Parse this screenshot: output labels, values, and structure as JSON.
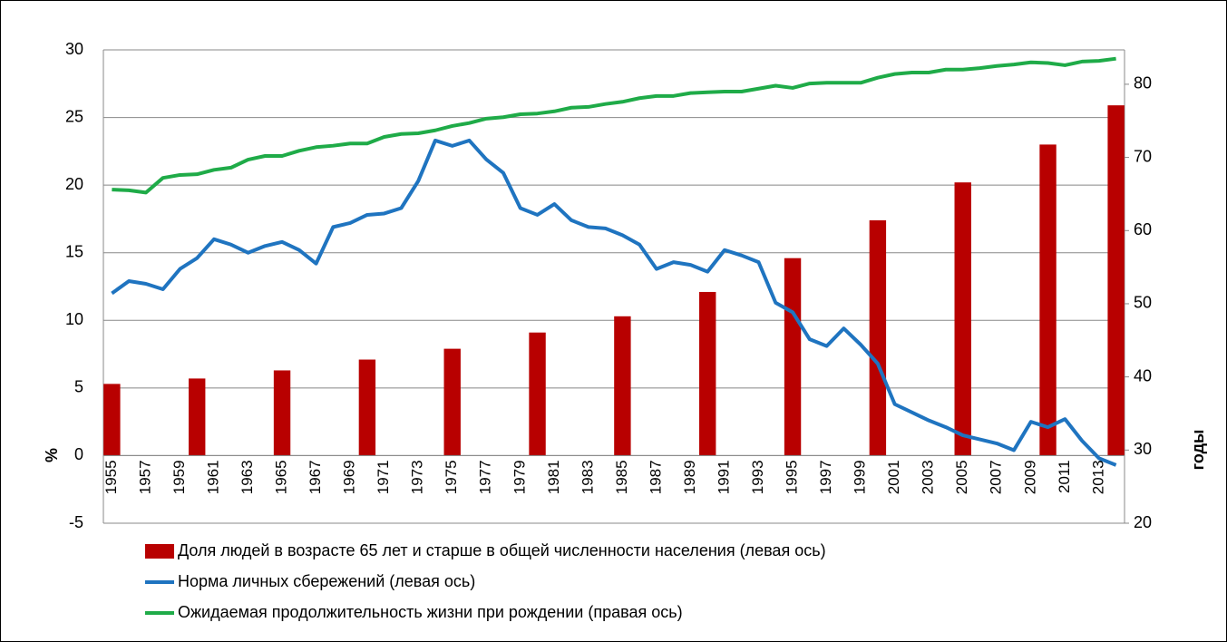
{
  "chart_data": {
    "type": "bar_line",
    "ylabel": "%",
    "y2label": "годы",
    "categories": [
      "1955",
      null,
      "1957",
      null,
      "1959",
      null,
      "1961",
      null,
      "1963",
      null,
      "1965",
      null,
      "1967",
      null,
      "1969",
      null,
      "1971",
      null,
      "1973",
      null,
      "1975",
      null,
      "1977",
      null,
      "1979",
      null,
      "1981",
      null,
      "1983",
      null,
      "1985",
      null,
      "1987",
      null,
      "1989",
      null,
      "1991",
      null,
      "1993",
      null,
      "1995",
      null,
      "1997",
      null,
      "1999",
      null,
      "2001",
      null,
      "2003",
      null,
      "2005",
      null,
      "2007",
      null,
      "2009",
      null,
      "2011",
      null,
      "2013",
      null
    ],
    "series": [
      {
        "name": "Доля людей в возрасте 65 лет и старше в общей численности населения (левая ось)",
        "type": "bar",
        "axis": "y",
        "color": "#b80000",
        "values": [
          5.3,
          null,
          null,
          null,
          null,
          5.7,
          null,
          null,
          null,
          null,
          6.3,
          null,
          null,
          null,
          null,
          7.1,
          null,
          null,
          null,
          null,
          7.9,
          null,
          null,
          null,
          null,
          9.1,
          null,
          null,
          null,
          null,
          10.3,
          null,
          null,
          null,
          null,
          12.1,
          null,
          null,
          null,
          null,
          14.6,
          null,
          null,
          null,
          null,
          17.4,
          null,
          null,
          null,
          null,
          20.2,
          null,
          null,
          null,
          null,
          23.0,
          null,
          null,
          null,
          25.9
        ]
      },
      {
        "name": "Норма личных сбережений (левая ось)",
        "type": "line",
        "axis": "y",
        "color": "#1f74c0",
        "values": [
          12.0,
          12.9,
          12.7,
          12.3,
          13.8,
          14.6,
          16.0,
          15.6,
          15.0,
          15.5,
          15.8,
          15.2,
          14.2,
          16.9,
          17.2,
          17.8,
          17.9,
          18.3,
          20.3,
          23.3,
          22.9,
          23.3,
          21.9,
          20.9,
          18.3,
          17.8,
          18.6,
          17.4,
          16.9,
          16.8,
          16.3,
          15.6,
          13.8,
          14.3,
          14.1,
          13.6,
          15.2,
          14.8,
          14.3,
          11.3,
          10.6,
          8.6,
          8.1,
          9.4,
          8.2,
          6.8,
          3.8,
          3.2,
          2.6,
          2.1,
          1.5,
          1.2,
          0.9,
          0.4,
          2.5,
          2.1,
          2.7,
          1.1,
          -0.2,
          -0.7
        ]
      },
      {
        "name": "Ожидаемая продолжительность жизни при рождении (правая ось)",
        "type": "line",
        "axis": "y2",
        "color": "#1fab48",
        "values": [
          65.6,
          65.5,
          65.2,
          67.2,
          67.6,
          67.7,
          68.3,
          68.6,
          69.7,
          70.2,
          70.2,
          70.9,
          71.4,
          71.6,
          71.9,
          71.9,
          72.8,
          73.2,
          73.3,
          73.7,
          74.3,
          74.7,
          75.3,
          75.5,
          75.9,
          76.0,
          76.3,
          76.8,
          76.9,
          77.3,
          77.6,
          78.1,
          78.4,
          78.4,
          78.8,
          78.9,
          79.0,
          79.0,
          79.4,
          79.8,
          79.5,
          80.1,
          80.2,
          80.2,
          80.2,
          80.9,
          81.4,
          81.6,
          81.6,
          82.0,
          82.0,
          82.2,
          82.5,
          82.7,
          83.0,
          82.9,
          82.6,
          83.1,
          83.2,
          83.5
        ]
      }
    ],
    "ylim": [
      -5,
      30
    ],
    "yticks": [
      -5,
      0,
      5,
      10,
      15,
      20,
      25,
      30
    ],
    "y2lim": [
      20,
      84.7
    ],
    "y2ticks": [
      20,
      30,
      40,
      50,
      60,
      70,
      80
    ],
    "grid": true,
    "legend": "bottom"
  }
}
